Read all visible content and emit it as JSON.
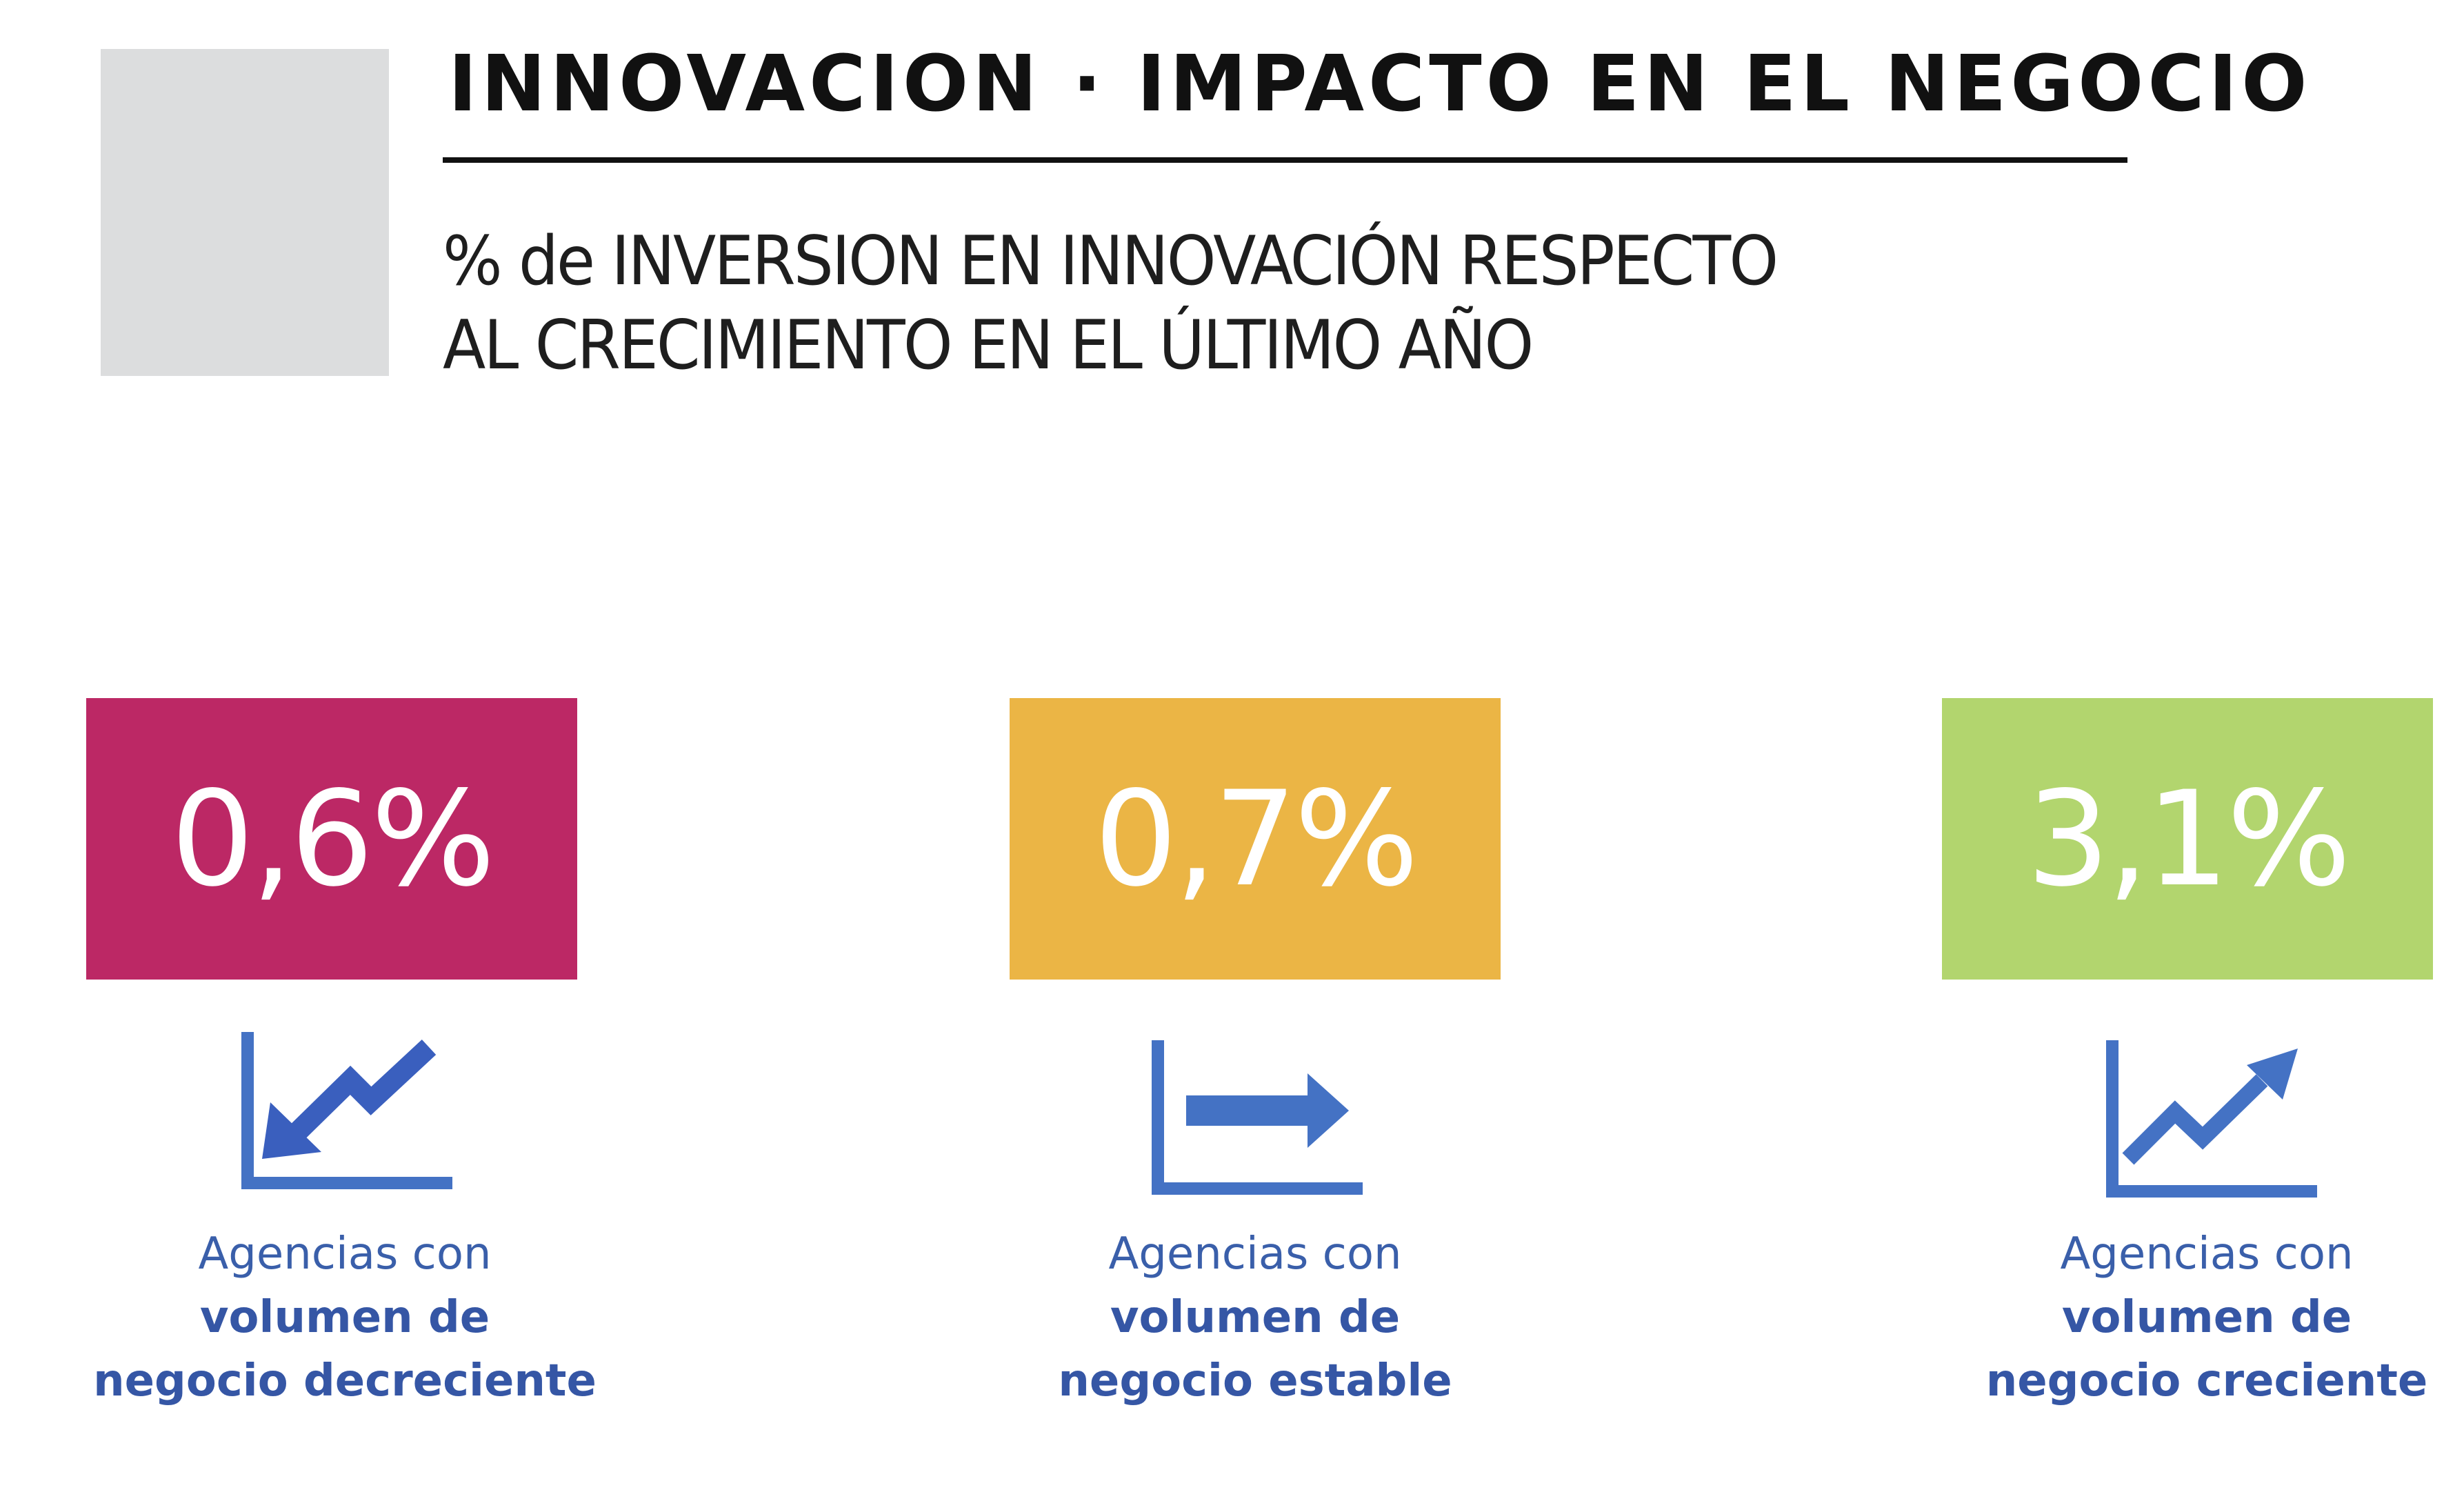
{
  "header": {
    "title": "INNOVACION · IMPACTO EN EL NEGOCIO",
    "subtitle_line1": "% de INVERSION EN INNOVACIÓN RESPECTO",
    "subtitle_line2": "AL CRECIMIENTO EN EL ÚLTIMO AÑO"
  },
  "colors": {
    "decreciente": "#bc2865",
    "estable": "#ebb545",
    "creciente": "#b2d56e",
    "icon": "#4472c4",
    "caption": "#3a5faa"
  },
  "cards": [
    {
      "value": "0,6%",
      "icon": "trend-down-icon",
      "caption_line1": "Agencias con",
      "caption_line2": "volumen de",
      "caption_line3": "negocio decreciente"
    },
    {
      "value": "0,7%",
      "icon": "trend-flat-icon",
      "caption_line1": "Agencias con",
      "caption_line2": "volumen de",
      "caption_line3": "negocio estable"
    },
    {
      "value": "3,1%",
      "icon": "trend-up-icon",
      "caption_line1": "Agencias con",
      "caption_line2": "volumen de",
      "caption_line3": "negocio creciente"
    }
  ]
}
